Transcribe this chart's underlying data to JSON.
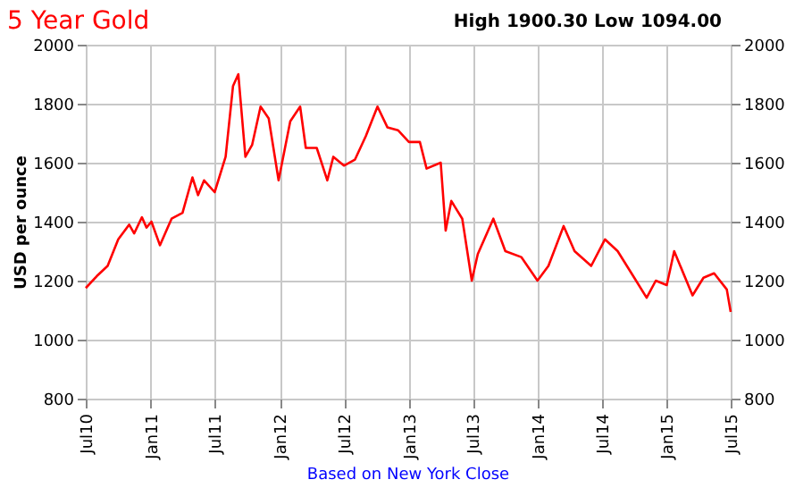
{
  "chart_data": {
    "type": "line",
    "title": "5 Year Gold",
    "subtitle": "High 1900.30 Low 1094.00",
    "ylabel": "USD per ounce",
    "annotations": [
      "Based on New York Close"
    ],
    "x": [
      "2010-07-01",
      "2010-08-01",
      "2010-09-01",
      "2010-10-01",
      "2010-11-01",
      "2010-11-15",
      "2010-12-07",
      "2010-12-20",
      "2011-01-03",
      "2011-01-27",
      "2011-03-01",
      "2011-04-01",
      "2011-04-29",
      "2011-05-15",
      "2011-06-01",
      "2011-07-01",
      "2011-08-01",
      "2011-08-22",
      "2011-09-06",
      "2011-09-26",
      "2011-10-15",
      "2011-11-08",
      "2011-12-01",
      "2011-12-29",
      "2012-01-31",
      "2012-02-28",
      "2012-03-15",
      "2012-04-15",
      "2012-05-15",
      "2012-06-01",
      "2012-07-01",
      "2012-08-01",
      "2012-09-01",
      "2012-10-04",
      "2012-11-01",
      "2012-12-01",
      "2013-01-01",
      "2013-02-01",
      "2013-02-20",
      "2013-04-01",
      "2013-04-15",
      "2013-05-01",
      "2013-06-01",
      "2013-06-28",
      "2013-07-15",
      "2013-08-28",
      "2013-10-01",
      "2013-11-15",
      "2013-12-31",
      "2014-01-31",
      "2014-03-15",
      "2014-04-15",
      "2014-06-01",
      "2014-07-10",
      "2014-08-15",
      "2014-10-01",
      "2014-11-05",
      "2014-12-01",
      "2015-01-01",
      "2015-01-22",
      "2015-03-15",
      "2015-04-15",
      "2015-05-15",
      "2015-06-20",
      "2015-07-01"
    ],
    "series": [
      {
        "color": "#ff0000",
        "values": [
          1175,
          1215,
          1250,
          1340,
          1390,
          1360,
          1415,
          1380,
          1400,
          1320,
          1410,
          1430,
          1550,
          1490,
          1540,
          1500,
          1620,
          1860,
          1900,
          1620,
          1660,
          1790,
          1750,
          1540,
          1740,
          1790,
          1650,
          1650,
          1540,
          1620,
          1590,
          1610,
          1690,
          1790,
          1720,
          1710,
          1670,
          1670,
          1580,
          1600,
          1370,
          1470,
          1410,
          1200,
          1290,
          1410,
          1300,
          1280,
          1200,
          1250,
          1385,
          1300,
          1250,
          1340,
          1300,
          1210,
          1142,
          1200,
          1185,
          1300,
          1150,
          1210,
          1225,
          1170,
          1094
        ]
      }
    ],
    "xlim": [
      "2010-07-01",
      "2015-07-01"
    ],
    "xticks": [
      {
        "value": "2010-07-01",
        "label": "Jul10"
      },
      {
        "value": "2011-01-01",
        "label": "Jan11"
      },
      {
        "value": "2011-07-01",
        "label": "Jul11"
      },
      {
        "value": "2012-01-01",
        "label": "Jan12"
      },
      {
        "value": "2012-07-01",
        "label": "Jul12"
      },
      {
        "value": "2013-01-01",
        "label": "Jan13"
      },
      {
        "value": "2013-07-01",
        "label": "Jul13"
      },
      {
        "value": "2014-01-01",
        "label": "Jan14"
      },
      {
        "value": "2014-07-01",
        "label": "Jul14"
      },
      {
        "value": "2015-01-01",
        "label": "Jan15"
      },
      {
        "value": "2015-07-01",
        "label": "Jul15"
      }
    ],
    "ylim": [
      800,
      2000
    ],
    "yticks": [
      800,
      1000,
      1200,
      1400,
      1600,
      1800,
      2000
    ],
    "y2lim": [
      800,
      2000
    ],
    "y2ticks": [
      800,
      1000,
      1200,
      1400,
      1600,
      1800,
      2000
    ],
    "grid": true,
    "marker": "none",
    "line_style": "solid"
  }
}
